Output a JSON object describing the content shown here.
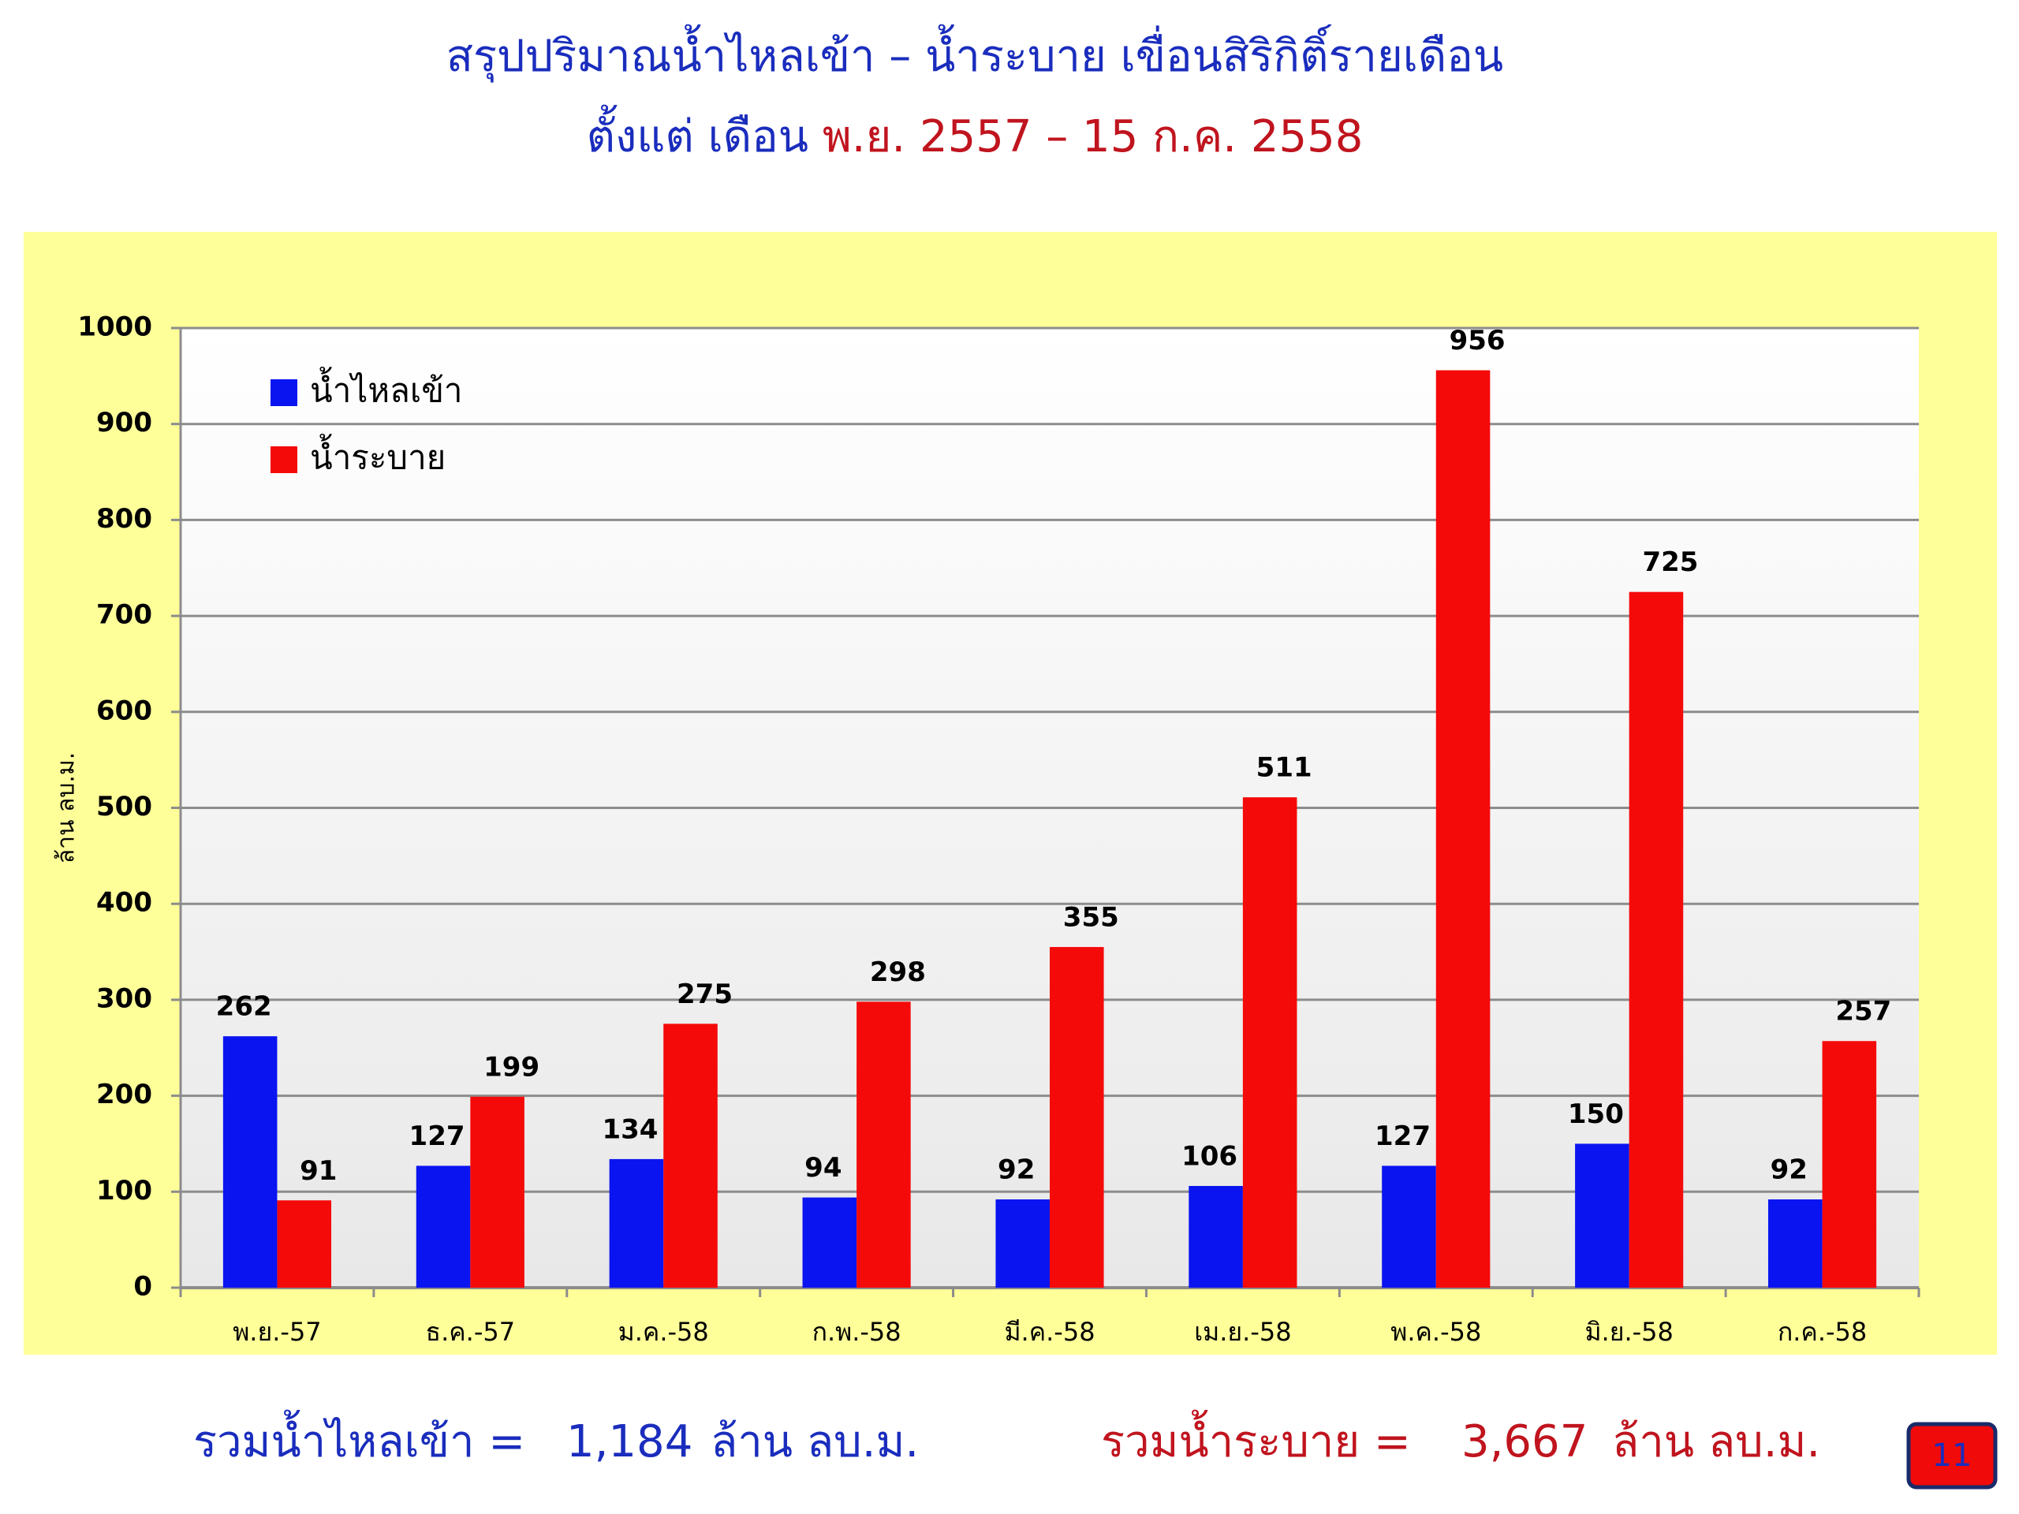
{
  "header": {
    "title_line1": "สรุปปริมาณน้ำไหลเข้า – น้ำระบาย เขื่อนสิริกิติ์รายเดือน",
    "title_line2_prefix": "ตั้งแต่ เดือน",
    "title_line2_range": "พ.ย. 2557 – 15 ก.ค. 2558"
  },
  "chart_data": {
    "type": "bar",
    "y_label": "ล้าน ลบ.ม.",
    "categories": [
      "พ.ย.-57",
      "ธ.ค.-57",
      "ม.ค.-58",
      "ก.พ.-58",
      "มี.ค.-58",
      "เม.ย.-58",
      "พ.ค.-58",
      "มิ.ย.-58",
      "ก.ค.-58"
    ],
    "series": [
      {
        "name": "น้ำไหลเข้า",
        "color": "#0a14f0",
        "values": [
          262,
          127,
          134,
          94,
          92,
          106,
          127,
          150,
          92
        ]
      },
      {
        "name": "น้ำระบาย",
        "color": "#f50a0a",
        "values": [
          91,
          199,
          275,
          298,
          355,
          511,
          956,
          725,
          257
        ]
      }
    ],
    "ylim": [
      0,
      1000
    ],
    "yticks": [
      0,
      100,
      200,
      300,
      400,
      500,
      600,
      700,
      800,
      900,
      1000
    ],
    "grid": true,
    "legend": "top-left"
  },
  "footer": {
    "inflow_label": "รวมน้ำไหลเข้า =",
    "inflow_total": "1,184",
    "inflow_unit": "ล้าน ลบ.ม.",
    "outflow_label": "รวมน้ำระบาย =",
    "outflow_total": "3,667",
    "outflow_unit": "ล้าน ลบ.ม.",
    "page_number": "11"
  }
}
